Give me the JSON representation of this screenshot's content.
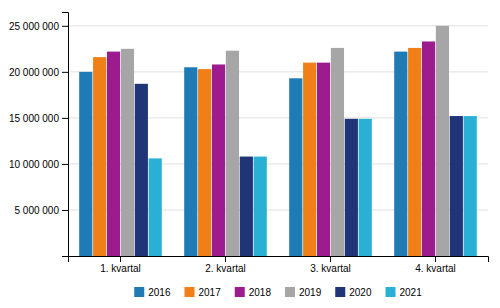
{
  "chart_data": {
    "type": "bar",
    "categories": [
      "1. kvartal",
      "2. kvartal",
      "3. kvartal",
      "4. kvartal"
    ],
    "series": [
      {
        "name": "2016",
        "color": "#1f7bb5",
        "values": [
          20000000,
          20500000,
          19300000,
          22200000
        ]
      },
      {
        "name": "2017",
        "color": "#f07f18",
        "values": [
          21600000,
          20300000,
          21000000,
          22600000
        ]
      },
      {
        "name": "2018",
        "color": "#9c1b8d",
        "values": [
          22200000,
          20800000,
          21000000,
          23300000
        ]
      },
      {
        "name": "2019",
        "color": "#a6a6a6",
        "values": [
          22500000,
          22300000,
          22600000,
          25000000
        ]
      },
      {
        "name": "2020",
        "color": "#1f3578",
        "values": [
          18700000,
          10800000,
          14900000,
          15200000
        ]
      },
      {
        "name": "2021",
        "color": "#2ab0d5",
        "values": [
          10600000,
          10800000,
          14900000,
          15200000
        ]
      }
    ],
    "ylim": [
      0,
      26500000
    ],
    "yticks": [
      {
        "value": 5000000,
        "label": "5 000 000"
      },
      {
        "value": 10000000,
        "label": "10 000 000"
      },
      {
        "value": 15000000,
        "label": "15 000 000"
      },
      {
        "value": 20000000,
        "label": "20 000 000"
      },
      {
        "value": 25000000,
        "label": "25 000 000"
      }
    ],
    "grid": true,
    "legend": "bottom"
  }
}
